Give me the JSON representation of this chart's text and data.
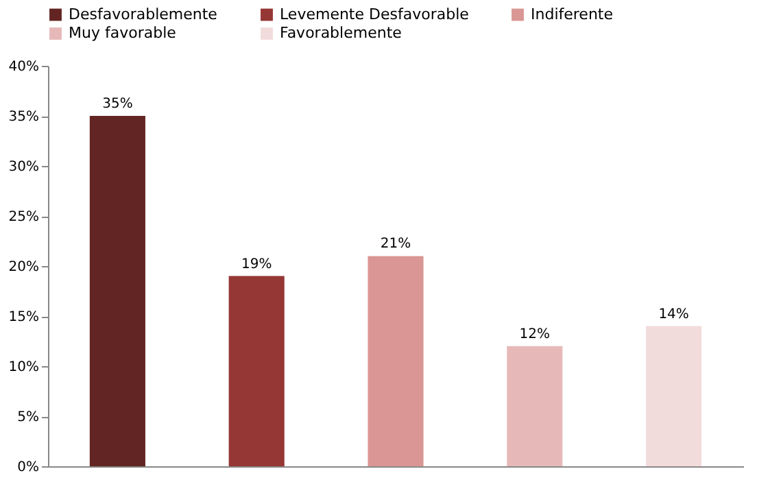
{
  "chart_data": {
    "type": "bar",
    "categories": [
      null,
      null,
      null,
      null,
      null
    ],
    "series": [
      {
        "name": "Desfavorablemente",
        "color": "#632523",
        "values": [
          35,
          null,
          null,
          null,
          null
        ],
        "value_labels": [
          "35%",
          null,
          null,
          null,
          null
        ]
      },
      {
        "name": "Levemente Desfavorable",
        "color": "#953735",
        "values": [
          null,
          19,
          null,
          null,
          null
        ],
        "value_labels": [
          null,
          "19%",
          null,
          null,
          null
        ]
      },
      {
        "name": "Indiferente",
        "color": "#d99694",
        "values": [
          null,
          null,
          21,
          null,
          null
        ],
        "value_labels": [
          null,
          null,
          "21%",
          null,
          null
        ]
      },
      {
        "name": "Muy favorable",
        "color": "#e6b9b8",
        "values": [
          null,
          null,
          null,
          12,
          null
        ],
        "value_labels": [
          null,
          null,
          null,
          "12%",
          null
        ]
      },
      {
        "name": "Favorablemente",
        "color": "#f2dcdb",
        "values": [
          null,
          null,
          null,
          null,
          14
        ],
        "value_labels": [
          null,
          null,
          null,
          null,
          "14%"
        ]
      }
    ],
    "ylim": [
      0,
      40
    ],
    "yticks": [
      {
        "value": 0,
        "label": "0%"
      },
      {
        "value": 5,
        "label": "5%"
      },
      {
        "value": 10,
        "label": "10%"
      },
      {
        "value": 15,
        "label": "15%"
      },
      {
        "value": 20,
        "label": "20%"
      },
      {
        "value": 25,
        "label": "25%"
      },
      {
        "value": 30,
        "label": "30%"
      },
      {
        "value": 35,
        "label": "35%"
      },
      {
        "value": 40,
        "label": "40%"
      }
    ],
    "tick_labels": "y",
    "legend": "top",
    "grid": false
  }
}
